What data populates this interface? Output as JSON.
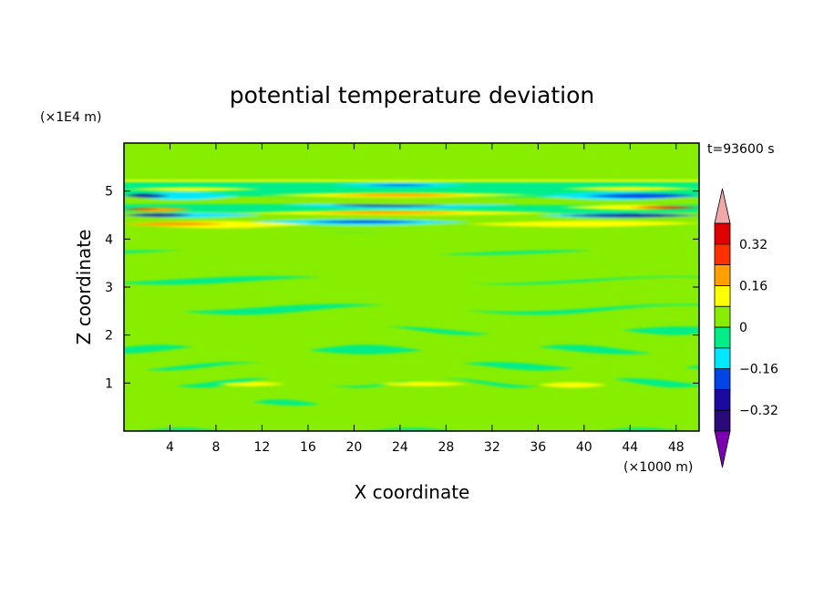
{
  "chart_data": {
    "type": "heatmap",
    "title": "potential temperature deviation",
    "xlabel": "X coordinate",
    "ylabel": "Z coordinate",
    "x_unit": "(×1000 m)",
    "y_unit": "(×1E4 m)",
    "time_label": "t=93600 s",
    "xlim": [
      0,
      50
    ],
    "ylim": [
      0,
      6
    ],
    "x_ticks": [
      4,
      8,
      12,
      16,
      20,
      24,
      28,
      32,
      36,
      40,
      44,
      48
    ],
    "y_ticks": [
      1,
      2,
      3,
      4,
      5
    ],
    "colorbar": {
      "levels": [
        -0.4,
        -0.32,
        -0.24,
        -0.16,
        -0.08,
        0,
        0.08,
        0.16,
        0.24,
        0.32,
        0.4
      ],
      "labels": [
        "0.32",
        "0.16",
        "0",
        "−0.16",
        "−0.32"
      ],
      "label_values": [
        0.32,
        0.16,
        0,
        -0.16,
        -0.32
      ],
      "colors": [
        "#2a0a7a",
        "#1a0aa0",
        "#0044e6",
        "#00e8ff",
        "#00ee88",
        "#88ee00",
        "#ffff00",
        "#ffa000",
        "#ff3000",
        "#e00000"
      ],
      "under_color": "#7a00b0",
      "over_color": "#f0a8a8"
    }
  }
}
